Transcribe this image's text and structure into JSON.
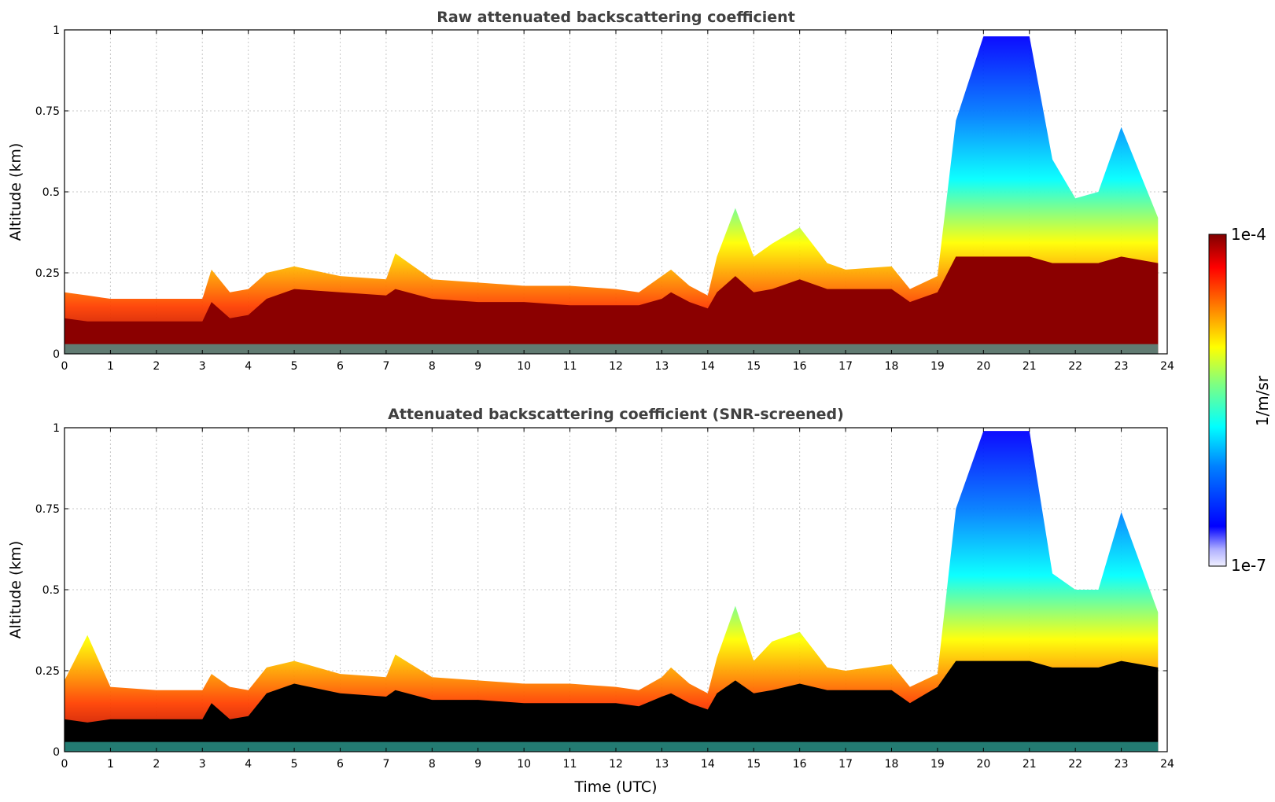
{
  "chart_data": [
    {
      "type": "heatmap",
      "title": "Raw attenuated backscattering coefficient",
      "xlabel": "",
      "ylabel": "Altitude (km)",
      "xlim": [
        0,
        24
      ],
      "ylim": [
        0,
        1
      ],
      "x_ticks": [
        "0",
        "1",
        "2",
        "3",
        "4",
        "5",
        "6",
        "7",
        "8",
        "9",
        "10",
        "11",
        "12",
        "13",
        "14",
        "15",
        "16",
        "17",
        "18",
        "19",
        "20",
        "21",
        "22",
        "23",
        "24"
      ],
      "y_ticks": [
        "0",
        "0.25",
        "0.5",
        "0.75",
        "1"
      ],
      "grid": true,
      "colorscale": "jet",
      "layer_time_utc": [
        0,
        0.5,
        1,
        2,
        3,
        3.2,
        3.6,
        4,
        4.4,
        5,
        6,
        7,
        7.2,
        8,
        9,
        10,
        11,
        12,
        12.5,
        13,
        13.2,
        13.6,
        14,
        14.2,
        14.6,
        15,
        15.4,
        16,
        16.6,
        17,
        18,
        18.4,
        19,
        19.4,
        20,
        20.5,
        21,
        21.5,
        22,
        22.5,
        23,
        23.8
      ],
      "layer_top_km": [
        0.19,
        0.18,
        0.17,
        0.17,
        0.17,
        0.26,
        0.19,
        0.2,
        0.25,
        0.27,
        0.24,
        0.23,
        0.31,
        0.23,
        0.22,
        0.21,
        0.21,
        0.2,
        0.19,
        0.24,
        0.26,
        0.21,
        0.18,
        0.3,
        0.45,
        0.3,
        0.34,
        0.39,
        0.28,
        0.26,
        0.27,
        0.2,
        0.24,
        0.72,
        0.98,
        0.98,
        0.98,
        0.6,
        0.48,
        0.5,
        0.7,
        0.42
      ],
      "dense_core_top_km": [
        0.11,
        0.1,
        0.1,
        0.1,
        0.1,
        0.16,
        0.11,
        0.12,
        0.17,
        0.2,
        0.19,
        0.18,
        0.2,
        0.17,
        0.16,
        0.16,
        0.15,
        0.15,
        0.15,
        0.17,
        0.19,
        0.16,
        0.14,
        0.19,
        0.24,
        0.19,
        0.2,
        0.23,
        0.2,
        0.2,
        0.2,
        0.16,
        0.19,
        0.3,
        0.3,
        0.3,
        0.3,
        0.28,
        0.28,
        0.28,
        0.3,
        0.28
      ]
    },
    {
      "type": "heatmap",
      "title": "Attenuated backscattering coefficient (SNR-screened)",
      "xlabel": "Time (UTC)",
      "ylabel": "Altitude (km)",
      "xlim": [
        0,
        24
      ],
      "ylim": [
        0,
        1
      ],
      "x_ticks": [
        "0",
        "1",
        "2",
        "3",
        "4",
        "5",
        "6",
        "7",
        "8",
        "9",
        "10",
        "11",
        "12",
        "13",
        "14",
        "15",
        "16",
        "17",
        "18",
        "19",
        "20",
        "21",
        "22",
        "23",
        "24"
      ],
      "y_ticks": [
        "0",
        "0.25",
        "0.5",
        "0.75",
        "1"
      ],
      "grid": true,
      "colorscale": "jet",
      "layer_time_utc": [
        0,
        0.5,
        1,
        2,
        3,
        3.2,
        3.6,
        4,
        4.4,
        5,
        6,
        7,
        7.2,
        8,
        9,
        10,
        11,
        12,
        12.5,
        13,
        13.2,
        13.6,
        14,
        14.2,
        14.6,
        15,
        15.4,
        16,
        16.6,
        17,
        18,
        18.4,
        19,
        19.4,
        20,
        20.5,
        21,
        21.5,
        22,
        22.5,
        23,
        23.8
      ],
      "layer_top_km": [
        0.22,
        0.36,
        0.2,
        0.19,
        0.19,
        0.24,
        0.2,
        0.19,
        0.26,
        0.28,
        0.24,
        0.23,
        0.3,
        0.23,
        0.22,
        0.21,
        0.21,
        0.2,
        0.19,
        0.23,
        0.26,
        0.21,
        0.18,
        0.29,
        0.45,
        0.28,
        0.34,
        0.37,
        0.26,
        0.25,
        0.27,
        0.2,
        0.24,
        0.75,
        0.99,
        0.99,
        0.99,
        0.55,
        0.5,
        0.5,
        0.74,
        0.43
      ],
      "dense_core_top_km": [
        0.1,
        0.09,
        0.1,
        0.1,
        0.1,
        0.15,
        0.1,
        0.11,
        0.18,
        0.21,
        0.18,
        0.17,
        0.19,
        0.16,
        0.16,
        0.15,
        0.15,
        0.15,
        0.14,
        0.17,
        0.18,
        0.15,
        0.13,
        0.18,
        0.22,
        0.18,
        0.19,
        0.21,
        0.19,
        0.19,
        0.19,
        0.15,
        0.2,
        0.28,
        0.28,
        0.28,
        0.28,
        0.26,
        0.26,
        0.26,
        0.28,
        0.26
      ]
    }
  ],
  "colorbar": {
    "label": "1/m/sr",
    "max_label": "1e-4",
    "min_label": "1e-7",
    "scale": "log",
    "colors": [
      "#e8e8ff",
      "#0000ff",
      "#0080ff",
      "#00ffff",
      "#80ff80",
      "#ffff00",
      "#ff8000",
      "#ff0000",
      "#800000"
    ]
  }
}
